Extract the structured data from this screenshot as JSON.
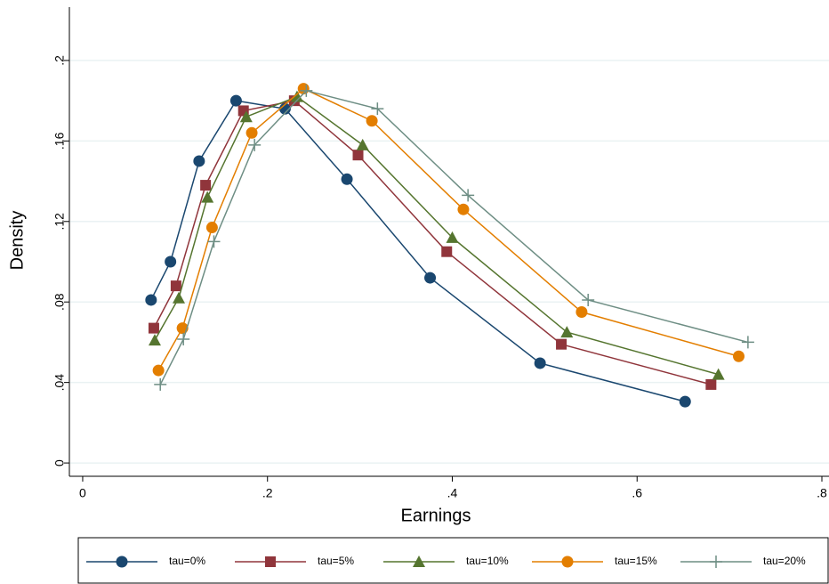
{
  "chart_data": {
    "type": "line",
    "x_label": "Earnings",
    "y_label": "Density",
    "xlim": [
      -0.0144,
      0.8077
    ],
    "ylim": [
      -0.0066,
      0.2265
    ],
    "xticks": [
      0,
      {
        "value": 0.2,
        "label": ".2"
      },
      {
        "value": 0.4,
        "label": ".4"
      },
      {
        "value": 0.6,
        "label": ".6"
      },
      {
        "value": 0.8,
        "label": ".8"
      }
    ],
    "yticks": [
      0,
      {
        "value": 0.04,
        "label": ".04"
      },
      {
        "value": 0.08,
        "label": ".08"
      },
      {
        "value": 0.12,
        "label": ".12"
      },
      {
        "value": 0.16,
        "label": ".16"
      },
      {
        "value": 0.2,
        "label": ".2"
      }
    ],
    "grid": true,
    "legend": "bottom",
    "series": [
      {
        "name": "tau=0%",
        "color": "#1a476f",
        "marker": "circle",
        "x": [
          0.074,
          0.095,
          0.126,
          0.166,
          0.219,
          0.286,
          0.376,
          0.495,
          0.652
        ],
        "values": [
          0.081,
          0.1,
          0.15,
          0.18,
          0.176,
          0.141,
          0.092,
          0.0496,
          0.0305
        ]
      },
      {
        "name": "tau=5%",
        "color": "#90353b",
        "marker": "square",
        "x": [
          0.077,
          0.101,
          0.133,
          0.174,
          0.229,
          0.298,
          0.394,
          0.518,
          0.68
        ],
        "values": [
          0.067,
          0.088,
          0.138,
          0.175,
          0.18,
          0.153,
          0.105,
          0.059,
          0.039
        ]
      },
      {
        "name": "tau=10%",
        "color": "#55752f",
        "marker": "triangle",
        "x": [
          0.078,
          0.104,
          0.135,
          0.177,
          0.232,
          0.303,
          0.4,
          0.524,
          0.688
        ],
        "values": [
          0.061,
          0.082,
          0.132,
          0.172,
          0.182,
          0.158,
          0.112,
          0.065,
          0.044
        ]
      },
      {
        "name": "tau=15%",
        "color": "#e37e00",
        "marker": "circle",
        "x": [
          0.082,
          0.108,
          0.14,
          0.183,
          0.239,
          0.313,
          0.412,
          0.54,
          0.71
        ],
        "values": [
          0.046,
          0.067,
          0.117,
          0.164,
          0.186,
          0.17,
          0.126,
          0.075,
          0.053
        ]
      },
      {
        "name": "tau=20%",
        "color": "#6e8e84",
        "marker": "plus",
        "x": [
          0.084,
          0.109,
          0.142,
          0.186,
          0.242,
          0.319,
          0.417,
          0.547,
          0.72
        ],
        "values": [
          0.039,
          0.0615,
          0.11,
          0.158,
          0.185,
          0.176,
          0.133,
          0.081,
          0.06
        ]
      }
    ]
  }
}
